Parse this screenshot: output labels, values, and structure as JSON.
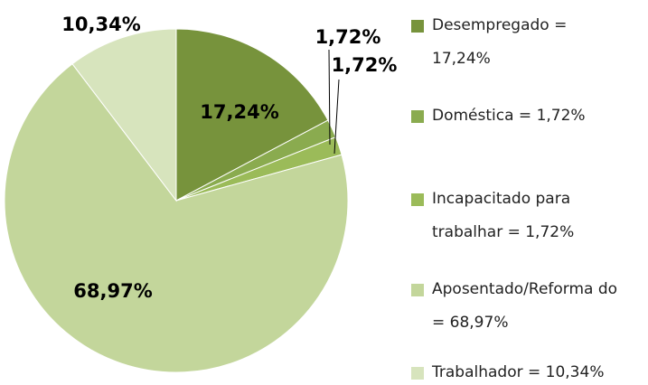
{
  "chart_data": {
    "type": "pie",
    "categories": [
      "Desempregado = 17,24%",
      "Doméstica = 1,72%",
      "Incapacitado para trabalhar = 1,72%",
      "Aposentado/Reforma do = 68,97%",
      "Trabalhador = 10,34%"
    ],
    "values": [
      17.24,
      1.72,
      1.72,
      68.97,
      10.34
    ],
    "value_labels": [
      "17,24%",
      "1,72%",
      "1,72%",
      "68,97%",
      "10,34%"
    ],
    "colors": [
      "#77933c",
      "#8aab4f",
      "#9bbb59",
      "#c3d69b",
      "#d7e4bd"
    ],
    "legend": "right"
  }
}
